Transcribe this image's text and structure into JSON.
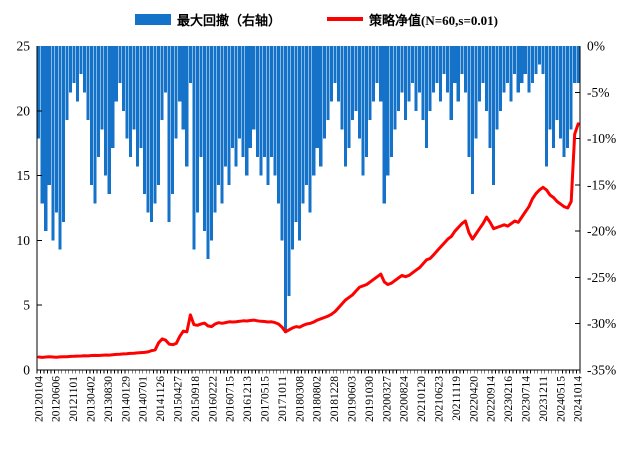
{
  "legend": {
    "drawdown_label": "最大回撤（右轴）",
    "netvalue_label": "策略净值(N=60,s=0.01)"
  },
  "colors": {
    "bar_blue": "#1472C8",
    "line_red": "#FF0000",
    "axis_black": "#000000"
  },
  "chart_data": {
    "type": "bar+line combo",
    "title": "",
    "x": {
      "unit": "trading date (monthly samples 2012-01 to 2024-10)",
      "tick_labels": [
        "20120104",
        "20120606",
        "20121101",
        "20130402",
        "20130830",
        "20140129",
        "20140701",
        "20141126",
        "20150427",
        "20150918",
        "20160222",
        "20160715",
        "20161213",
        "20170515",
        "20171011",
        "20180308",
        "20180802",
        "20181228",
        "20190603",
        "20191030",
        "20200327",
        "20200824",
        "20210120",
        "20210623",
        "20211119",
        "20220420",
        "20220914",
        "20230216",
        "20230714",
        "20231211",
        "20240515",
        "20241014"
      ]
    },
    "left_axis": {
      "min": 0,
      "max": 25,
      "ticks": [
        "0",
        "5",
        "10",
        "15",
        "20",
        "25"
      ]
    },
    "right_axis": {
      "min": -35,
      "max": 0,
      "ticks": [
        "0%",
        "-5%",
        "-10%",
        "-15%",
        "-20%",
        "-25%",
        "-30%",
        "-35%"
      ]
    },
    "grid": "off",
    "legend_position": "top-center",
    "series": [
      {
        "name": "最大回撤（右轴）",
        "type": "bar",
        "axis": "right",
        "unit": "%",
        "values": [
          -10,
          -17,
          -20,
          -15,
          -21,
          -18,
          -22,
          -19,
          -8,
          -5,
          -4,
          -6,
          -3,
          -5,
          -8,
          -15,
          -17,
          -12,
          -9,
          -14,
          -16,
          -11,
          -6,
          -4,
          -7,
          -10,
          -12,
          -9,
          -13,
          -11,
          -16,
          -18,
          -19,
          -17,
          -15,
          -8,
          -5,
          -19,
          -16,
          -10,
          -6,
          -9,
          -13,
          -4,
          -22,
          -18,
          -12,
          -20,
          -23,
          -21,
          -18,
          -15,
          -17,
          -13,
          -15,
          -11,
          -13,
          -10,
          -12,
          -14,
          -11,
          -9,
          -12,
          -14,
          -12,
          -15,
          -12,
          -14,
          -17,
          -21,
          -31,
          -27,
          -22,
          -19,
          -21,
          -17,
          -15,
          -18,
          -14,
          -11,
          -13,
          -10,
          -8,
          -6,
          -4,
          -6,
          -9,
          -13,
          -11,
          -8,
          -7,
          -10,
          -14,
          -12,
          -8,
          -6,
          -4,
          -6,
          -17,
          -14,
          -12,
          -9,
          -7,
          -5,
          -8,
          -6,
          -4,
          -7,
          -5,
          -8,
          -11,
          -7,
          -5,
          -4,
          -6,
          -3,
          -5,
          -8,
          -4,
          -6,
          -3,
          -5,
          -12,
          -16,
          -10,
          -6,
          -4,
          -7,
          -11,
          -15,
          -9,
          -7,
          -5,
          -4,
          -6,
          -3,
          -5,
          -4,
          -3,
          -5,
          -4,
          -3,
          -2,
          -3,
          -13,
          -9,
          -11,
          -8,
          -10,
          -12,
          -11,
          -9,
          -4,
          -4
        ]
      },
      {
        "name": "策略净值(N=60,s=0.01)",
        "type": "line",
        "axis": "left",
        "unit": "net value",
        "values": [
          1.0,
          0.97,
          1.0,
          1.02,
          1.0,
          0.98,
          1.01,
          1.03,
          1.02,
          1.05,
          1.06,
          1.07,
          1.08,
          1.1,
          1.09,
          1.12,
          1.13,
          1.12,
          1.14,
          1.16,
          1.15,
          1.18,
          1.2,
          1.22,
          1.24,
          1.26,
          1.28,
          1.3,
          1.32,
          1.34,
          1.36,
          1.4,
          1.5,
          1.55,
          2.1,
          2.4,
          2.3,
          2.0,
          1.95,
          2.05,
          2.6,
          3.0,
          2.95,
          4.25,
          3.5,
          3.45,
          3.55,
          3.62,
          3.4,
          3.35,
          3.55,
          3.65,
          3.6,
          3.66,
          3.72,
          3.7,
          3.73,
          3.76,
          3.8,
          3.78,
          3.82,
          3.85,
          3.8,
          3.76,
          3.74,
          3.7,
          3.72,
          3.66,
          3.55,
          3.3,
          2.95,
          3.1,
          3.25,
          3.35,
          3.3,
          3.45,
          3.55,
          3.6,
          3.7,
          3.85,
          3.95,
          4.05,
          4.15,
          4.3,
          4.5,
          4.8,
          5.1,
          5.4,
          5.6,
          5.8,
          6.1,
          6.4,
          6.5,
          6.6,
          6.8,
          7.0,
          7.2,
          7.4,
          6.8,
          6.6,
          6.7,
          6.9,
          7.1,
          7.3,
          7.2,
          7.3,
          7.5,
          7.7,
          7.9,
          8.2,
          8.5,
          8.6,
          8.9,
          9.2,
          9.5,
          9.8,
          10.1,
          10.3,
          10.7,
          11.0,
          11.3,
          11.5,
          10.6,
          10.1,
          10.5,
          10.9,
          11.3,
          11.8,
          11.4,
          10.9,
          11.0,
          11.1,
          11.2,
          11.1,
          11.3,
          11.5,
          11.4,
          11.8,
          12.2,
          12.6,
          13.2,
          13.6,
          13.9,
          14.1,
          13.9,
          13.5,
          13.3,
          13.0,
          12.8,
          12.6,
          12.5,
          13.0,
          18.2,
          19.0
        ]
      }
    ]
  }
}
